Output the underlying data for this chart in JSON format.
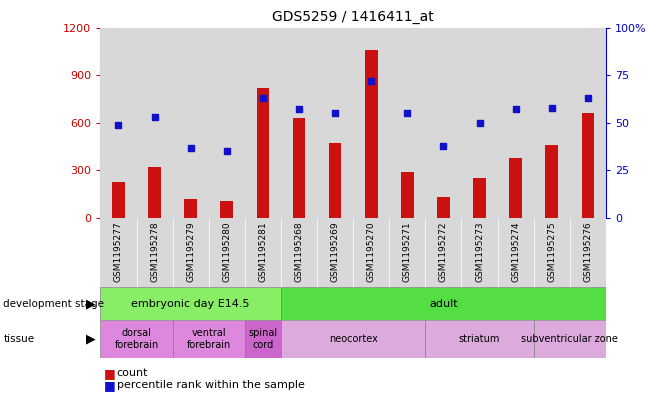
{
  "title": "GDS5259 / 1416411_at",
  "samples": [
    "GSM1195277",
    "GSM1195278",
    "GSM1195279",
    "GSM1195280",
    "GSM1195281",
    "GSM1195268",
    "GSM1195269",
    "GSM1195270",
    "GSM1195271",
    "GSM1195272",
    "GSM1195273",
    "GSM1195274",
    "GSM1195275",
    "GSM1195276"
  ],
  "counts": [
    230,
    320,
    120,
    110,
    820,
    630,
    470,
    1060,
    290,
    130,
    250,
    380,
    460,
    660
  ],
  "percentiles": [
    49,
    53,
    37,
    35,
    63,
    57,
    55,
    72,
    55,
    38,
    50,
    57,
    58,
    63
  ],
  "ylim_left": [
    0,
    1200
  ],
  "ylim_right": [
    0,
    100
  ],
  "yticks_left": [
    0,
    300,
    600,
    900,
    1200
  ],
  "yticks_right": [
    0,
    25,
    50,
    75,
    100
  ],
  "dev_stages": [
    {
      "label": "embryonic day E14.5",
      "start": 0,
      "end": 5,
      "color": "#88ee66"
    },
    {
      "label": "adult",
      "start": 5,
      "end": 14,
      "color": "#55dd44"
    }
  ],
  "tissues": [
    {
      "label": "dorsal\nforebrain",
      "start": 0,
      "end": 2,
      "color": "#dd88dd"
    },
    {
      "label": "ventral\nforebrain",
      "start": 2,
      "end": 4,
      "color": "#dd88dd"
    },
    {
      "label": "spinal\ncord",
      "start": 4,
      "end": 5,
      "color": "#cc66cc"
    },
    {
      "label": "neocortex",
      "start": 5,
      "end": 9,
      "color": "#ddaadd"
    },
    {
      "label": "striatum",
      "start": 9,
      "end": 12,
      "color": "#ddaadd"
    },
    {
      "label": "subventricular zone",
      "start": 12,
      "end": 14,
      "color": "#ddaadd"
    }
  ],
  "bar_color": "#cc1111",
  "dot_color": "#1111cc",
  "col_bg": "#d8d8d8",
  "plot_bg": "#ffffff",
  "left_axis_color": "#cc0000",
  "right_axis_color": "#0000cc"
}
